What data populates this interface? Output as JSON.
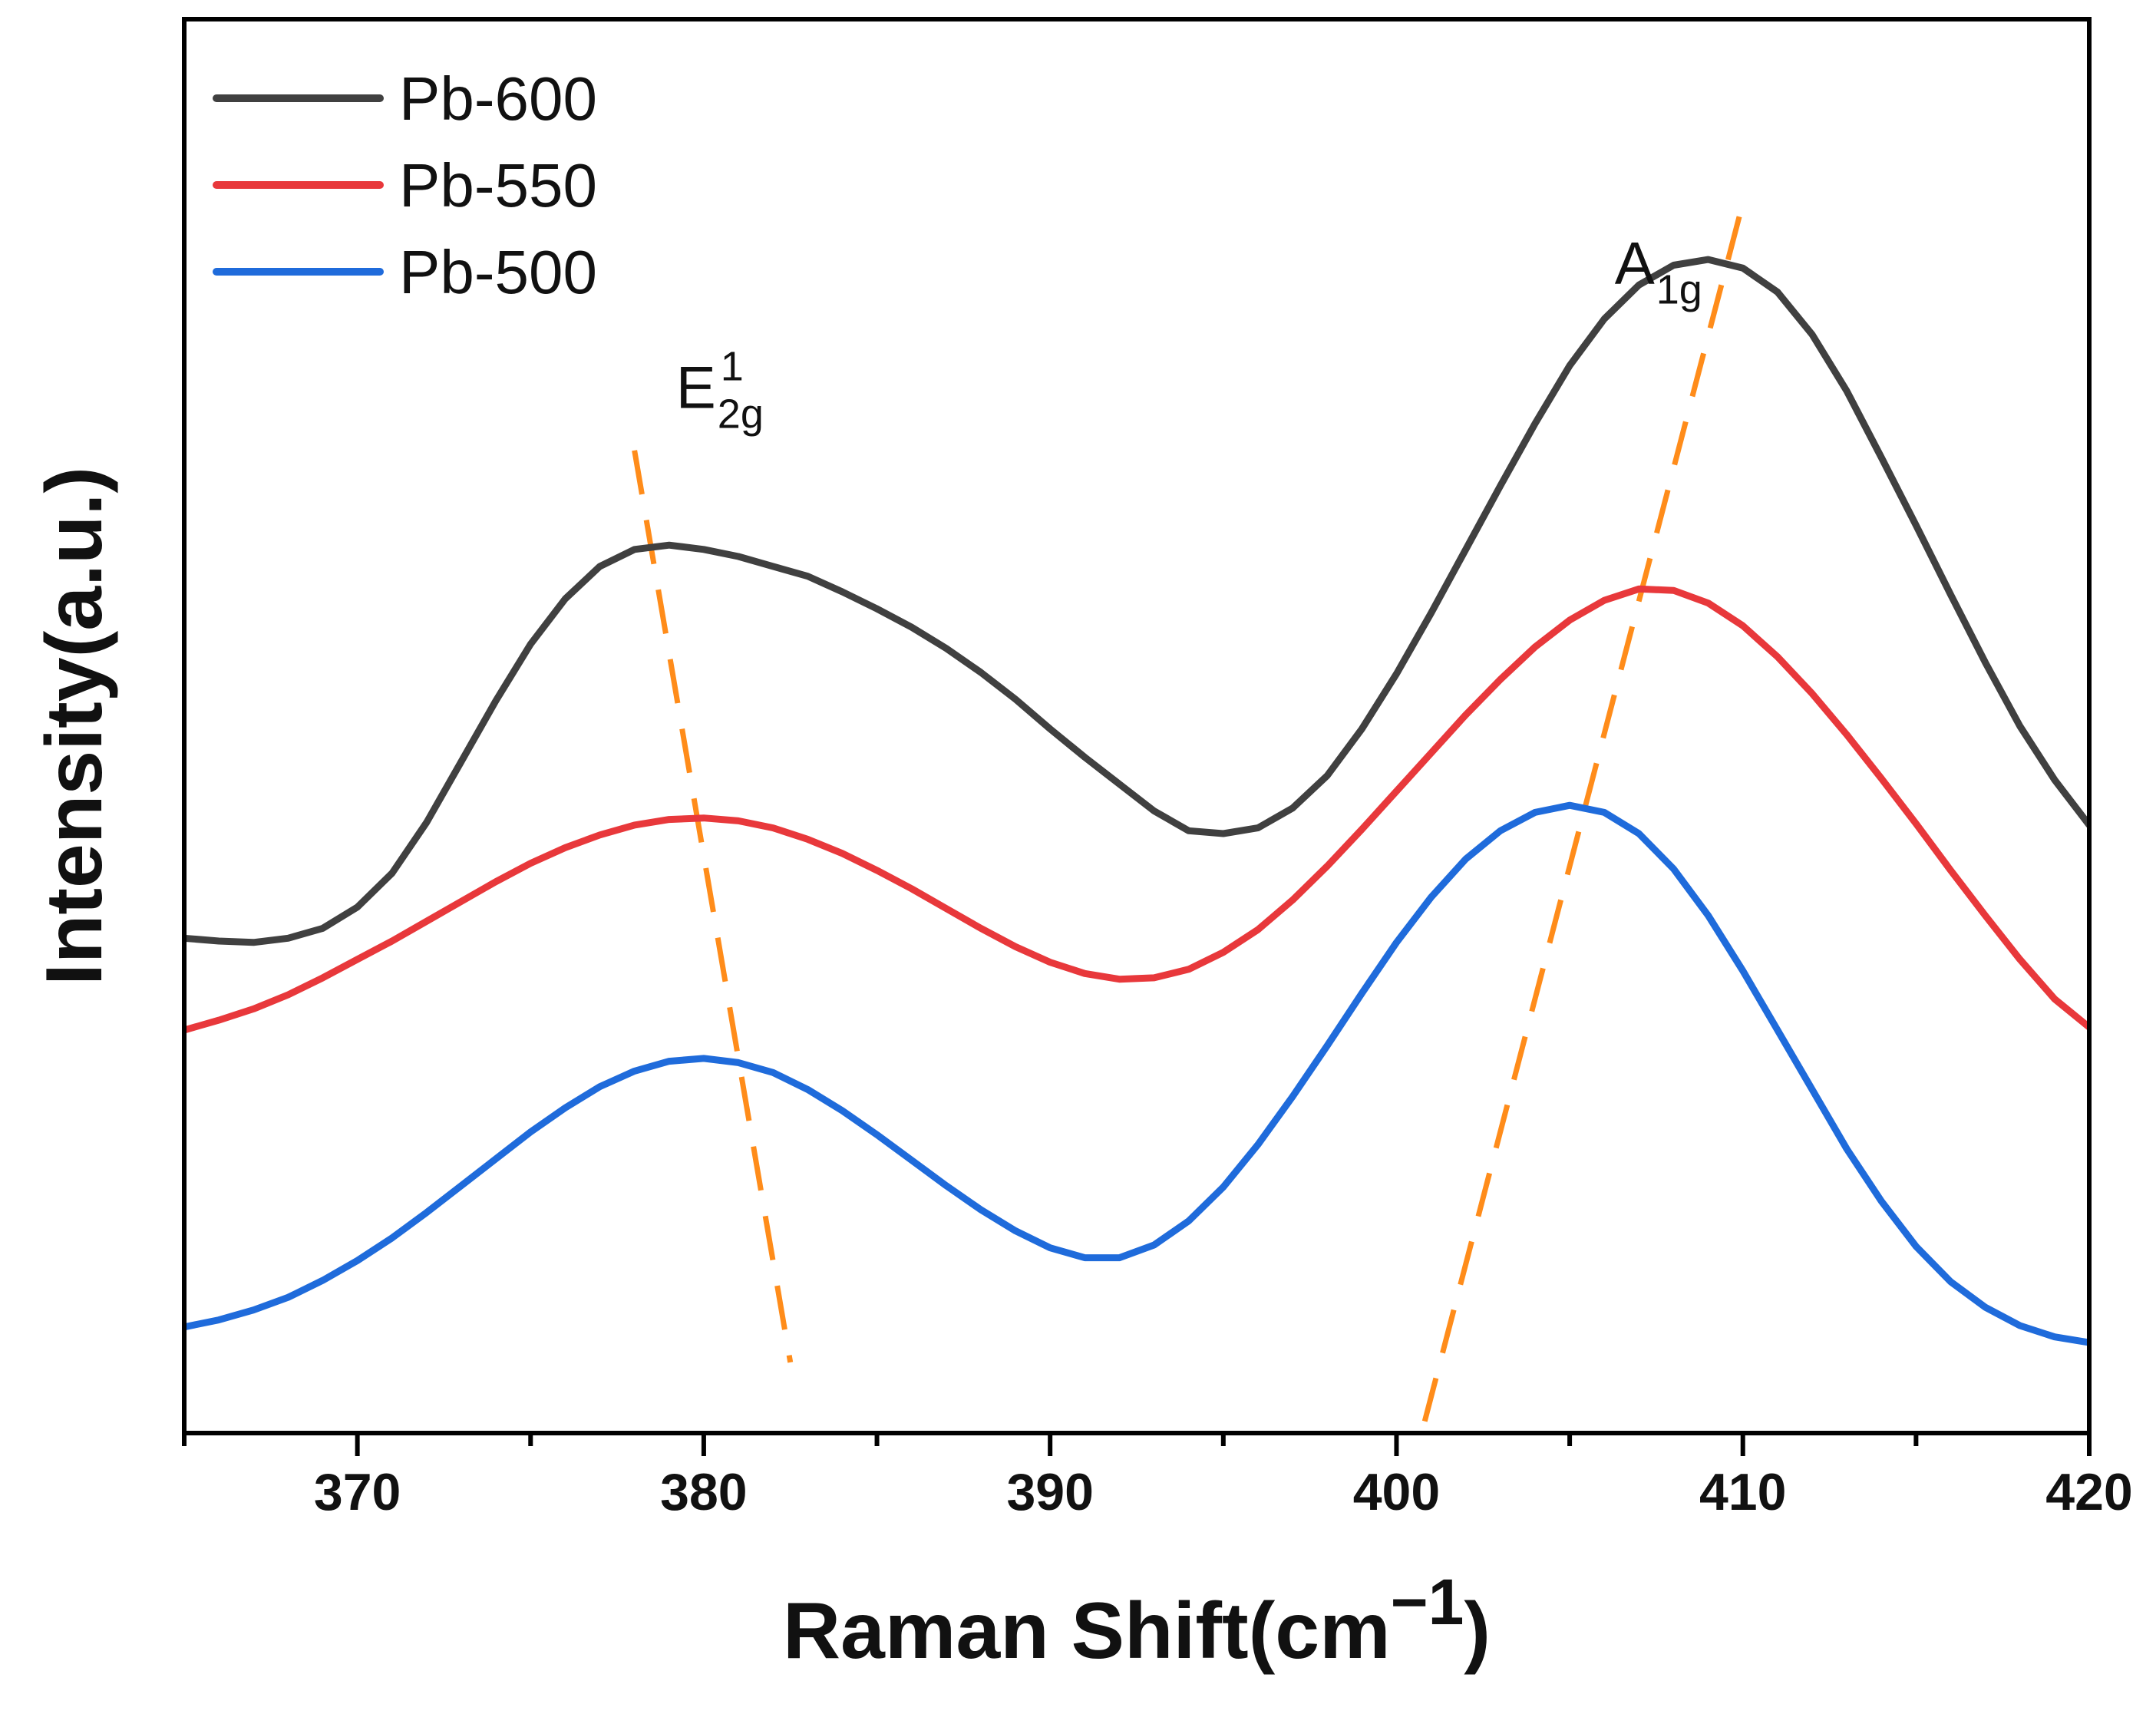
{
  "chart_data": {
    "type": "line",
    "title": "",
    "xlabel": "Raman Shift(cm",
    "xlabel_superscript": "−1",
    "xlabel_close": ")",
    "ylabel": "Intensity(a.u.)",
    "xlim": [
      365,
      420
    ],
    "ylim": [
      0,
      100
    ],
    "xticks": [
      370,
      380,
      390,
      400,
      410,
      420
    ],
    "xtick_labels": [
      "370",
      "380",
      "390",
      "400",
      "410",
      "420"
    ],
    "y_ticks_shown": false,
    "legend_position": "top-left",
    "series": [
      {
        "name": "Pb-600",
        "color": "#404040",
        "x": [
          365,
          366,
          367,
          368,
          369,
          370,
          371,
          372,
          373,
          374,
          375,
          376,
          377,
          378,
          379,
          380,
          381,
          382,
          383,
          384,
          385,
          386,
          387,
          388,
          389,
          390,
          391,
          392,
          393,
          394,
          395,
          396,
          397,
          398,
          399,
          400,
          401,
          402,
          403,
          404,
          405,
          406,
          407,
          408,
          409,
          410,
          411,
          412,
          413,
          414,
          415,
          416,
          417,
          418,
          419,
          420
        ],
        "y": [
          35.0,
          34.8,
          34.7,
          35.0,
          35.7,
          37.2,
          39.6,
          43.2,
          47.5,
          51.8,
          55.8,
          59.0,
          61.3,
          62.5,
          62.8,
          62.5,
          62.0,
          61.3,
          60.6,
          59.5,
          58.3,
          57.0,
          55.5,
          53.8,
          51.9,
          49.8,
          47.8,
          45.9,
          44.0,
          42.6,
          42.4,
          42.8,
          44.2,
          46.5,
          49.8,
          53.7,
          58.0,
          62.5,
          67.0,
          71.4,
          75.5,
          78.8,
          81.2,
          82.6,
          83.0,
          82.4,
          80.7,
          77.7,
          73.7,
          69.0,
          64.2,
          59.3,
          54.5,
          50.0,
          46.2,
          43.0
        ]
      },
      {
        "name": "Pb-550",
        "color": "#e8383b",
        "x": [
          365,
          366,
          367,
          368,
          369,
          370,
          371,
          372,
          373,
          374,
          375,
          376,
          377,
          378,
          379,
          380,
          381,
          382,
          383,
          384,
          385,
          386,
          387,
          388,
          389,
          390,
          391,
          392,
          393,
          394,
          395,
          396,
          397,
          398,
          399,
          400,
          401,
          402,
          403,
          404,
          405,
          406,
          407,
          408,
          409,
          410,
          411,
          412,
          413,
          414,
          415,
          416,
          417,
          418,
          419,
          420
        ],
        "y": [
          28.5,
          29.2,
          30.0,
          31.0,
          32.2,
          33.5,
          34.8,
          36.2,
          37.6,
          39.0,
          40.3,
          41.4,
          42.3,
          43.0,
          43.4,
          43.5,
          43.3,
          42.8,
          42.0,
          41.0,
          39.8,
          38.5,
          37.1,
          35.7,
          34.4,
          33.3,
          32.5,
          32.1,
          32.2,
          32.8,
          34.0,
          35.6,
          37.7,
          40.1,
          42.7,
          45.4,
          48.1,
          50.8,
          53.3,
          55.6,
          57.5,
          58.9,
          59.7,
          59.6,
          58.7,
          57.1,
          54.9,
          52.3,
          49.4,
          46.3,
          43.1,
          39.8,
          36.6,
          33.5,
          30.7,
          28.7
        ]
      },
      {
        "name": "Pb-500",
        "color": "#1f6bdb",
        "x": [
          365,
          366,
          367,
          368,
          369,
          370,
          371,
          372,
          373,
          374,
          375,
          376,
          377,
          378,
          379,
          380,
          381,
          382,
          383,
          384,
          385,
          386,
          387,
          388,
          389,
          390,
          391,
          392,
          393,
          394,
          395,
          396,
          397,
          398,
          399,
          400,
          401,
          402,
          403,
          404,
          405,
          406,
          407,
          408,
          409,
          410,
          411,
          412,
          413,
          414,
          415,
          416,
          417,
          418,
          419,
          420
        ],
        "y": [
          7.5,
          8.0,
          8.7,
          9.6,
          10.8,
          12.2,
          13.8,
          15.6,
          17.5,
          19.4,
          21.3,
          23.0,
          24.5,
          25.6,
          26.3,
          26.5,
          26.2,
          25.5,
          24.3,
          22.8,
          21.1,
          19.3,
          17.5,
          15.8,
          14.3,
          13.1,
          12.4,
          12.4,
          13.3,
          15.0,
          17.4,
          20.4,
          23.8,
          27.4,
          31.1,
          34.7,
          37.9,
          40.6,
          42.6,
          43.9,
          44.4,
          43.9,
          42.4,
          39.9,
          36.6,
          32.7,
          28.5,
          24.3,
          20.1,
          16.4,
          13.2,
          10.7,
          8.9,
          7.6,
          6.8,
          6.4
        ]
      }
    ],
    "annotations": [
      {
        "main": "E",
        "sub": "2g",
        "sup": "1",
        "x": 379.2,
        "y": 72.5
      },
      {
        "main": "A",
        "sub": "1g",
        "x": 406.3,
        "y": 81.3
      }
    ],
    "guide_lines": [
      {
        "peak": "E2g",
        "color": "#ff8c1a",
        "from": [
          378.0,
          69.5
        ],
        "to": [
          382.5,
          5.0
        ]
      },
      {
        "peak": "A1g",
        "color": "#ff8c1a",
        "from": [
          400.3,
          -4.0
        ],
        "to": [
          410.0,
          87.0
        ]
      }
    ]
  }
}
